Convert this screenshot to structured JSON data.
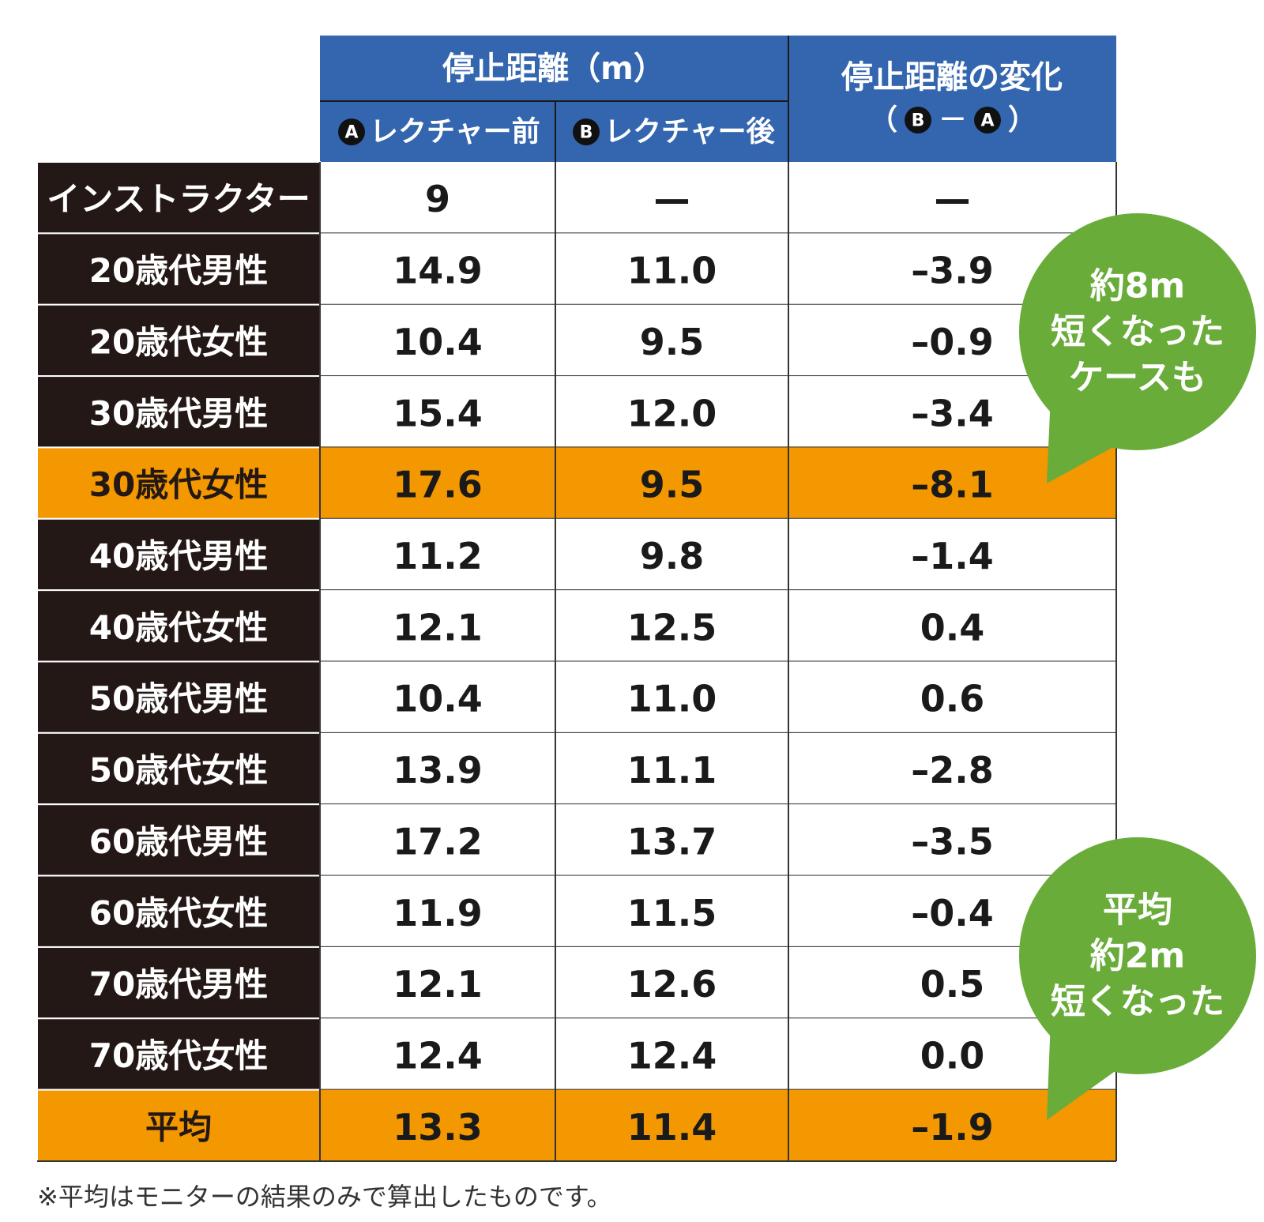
{
  "header": {
    "group": "停止距離（m）",
    "col_a": {
      "badge": "A",
      "label": "レクチャー前"
    },
    "col_b": {
      "badge": "B",
      "label": "レクチャー後"
    },
    "change": {
      "title": "停止距離の変化",
      "formula": [
        "（",
        "B",
        "－",
        "A",
        "）"
      ]
    }
  },
  "rows": [
    {
      "label": "インストラクター",
      "a": "9",
      "b": "—",
      "change": "—",
      "highlight": false
    },
    {
      "label": "20歳代男性",
      "a": "14.9",
      "b": "11.0",
      "change": "–3.9",
      "highlight": false
    },
    {
      "label": "20歳代女性",
      "a": "10.4",
      "b": "9.5",
      "change": "–0.9",
      "highlight": false
    },
    {
      "label": "30歳代男性",
      "a": "15.4",
      "b": "12.0",
      "change": "–3.4",
      "highlight": false
    },
    {
      "label": "30歳代女性",
      "a": "17.6",
      "b": "9.5",
      "change": "–8.1",
      "highlight": true
    },
    {
      "label": "40歳代男性",
      "a": "11.2",
      "b": "9.8",
      "change": "–1.4",
      "highlight": false
    },
    {
      "label": "40歳代女性",
      "a": "12.1",
      "b": "12.5",
      "change": "0.4",
      "highlight": false
    },
    {
      "label": "50歳代男性",
      "a": "10.4",
      "b": "11.0",
      "change": "0.6",
      "highlight": false
    },
    {
      "label": "50歳代女性",
      "a": "13.9",
      "b": "11.1",
      "change": "–2.8",
      "highlight": false
    },
    {
      "label": "60歳代男性",
      "a": "17.2",
      "b": "13.7",
      "change": "–3.5",
      "highlight": false
    },
    {
      "label": "60歳代女性",
      "a": "11.9",
      "b": "11.5",
      "change": "–0.4",
      "highlight": false
    },
    {
      "label": "70歳代男性",
      "a": "12.1",
      "b": "12.6",
      "change": "0.5",
      "highlight": false
    },
    {
      "label": "70歳代女性",
      "a": "12.4",
      "b": "12.4",
      "change": "0.0",
      "highlight": false
    },
    {
      "label": "平均",
      "a": "13.3",
      "b": "11.4",
      "change": "–1.9",
      "highlight": true
    }
  ],
  "callouts": [
    {
      "lines": [
        "約8m",
        "短くなった",
        "ケースも"
      ]
    },
    {
      "lines": [
        "平均",
        "約2m",
        "短くなった"
      ]
    }
  ],
  "footnote": "※平均はモニターの結果のみで算出したものです。"
}
